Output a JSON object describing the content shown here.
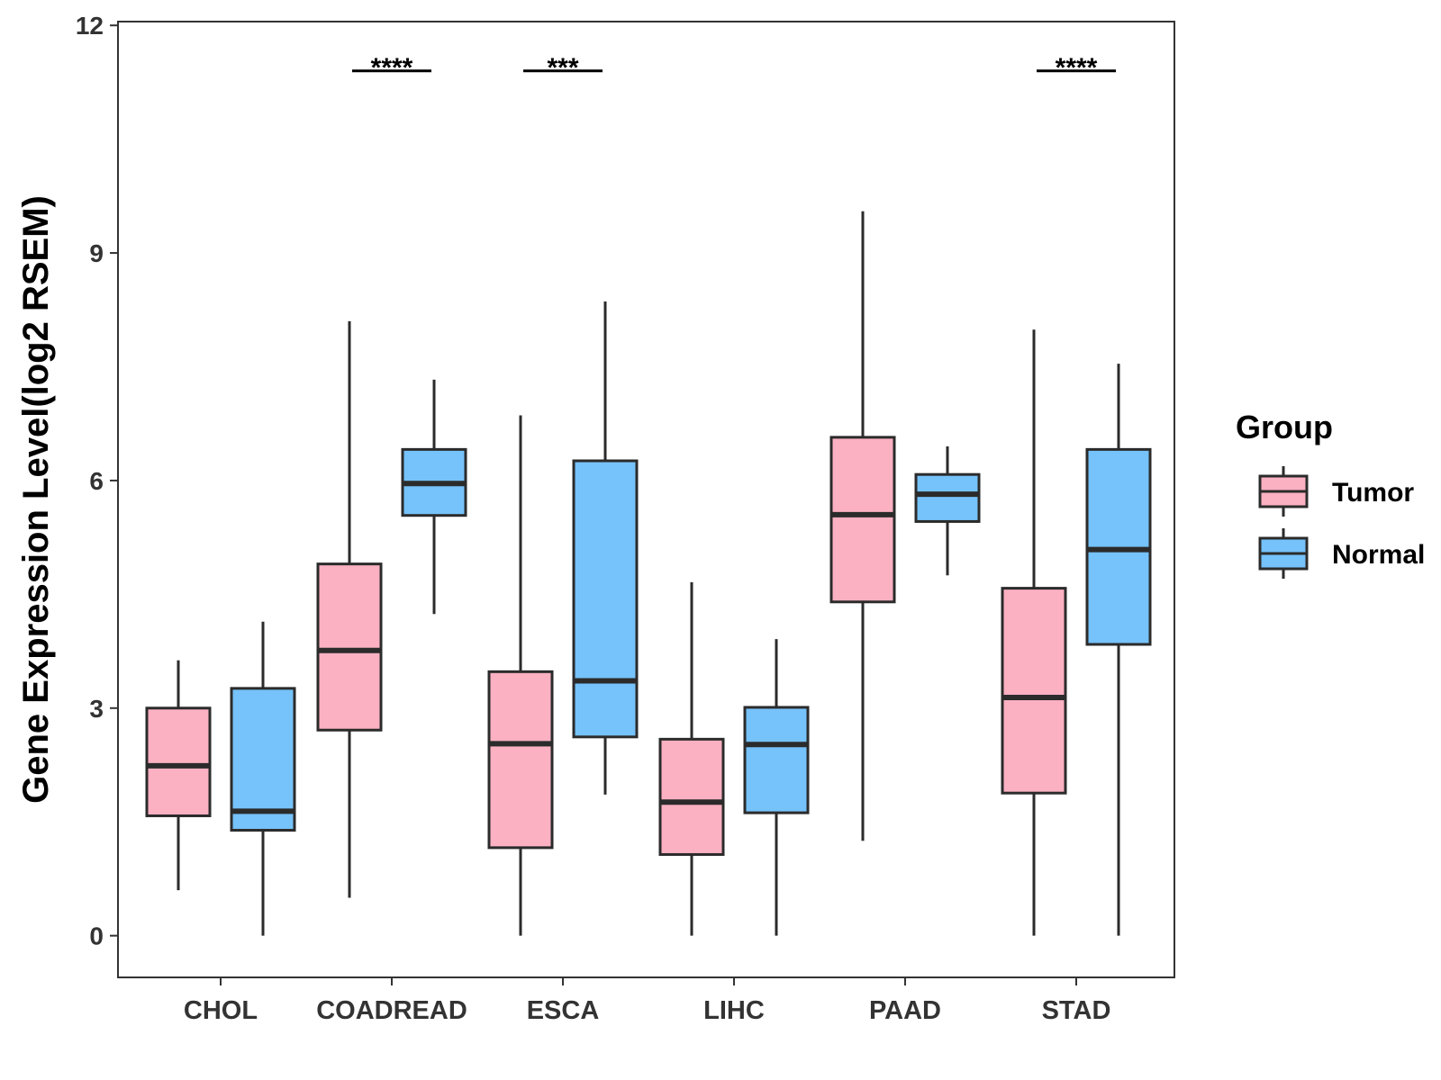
{
  "chart_data": {
    "type": "boxplot",
    "title": "",
    "xlabel": "",
    "ylabel": "Gene Expression Level(log2 RSEM)",
    "ylim": [
      -0.55,
      12.05
    ],
    "yticks": [
      0,
      3,
      6,
      9,
      12
    ],
    "ytick_labels": [
      "0",
      "3",
      "6",
      "9",
      "12"
    ],
    "categories": [
      "CHOL",
      "COADREAD",
      "ESCA",
      "LIHC",
      "PAAD",
      "STAD"
    ],
    "legend": {
      "title": "Group",
      "position": "right",
      "entries": [
        {
          "name": "Tumor",
          "color": "#FBB1C2"
        },
        {
          "name": "Normal",
          "color": "#76C2FA"
        }
      ]
    },
    "series": [
      {
        "name": "Tumor",
        "color": "#FBB1C2",
        "boxes": [
          {
            "category": "CHOL",
            "min": 0.6,
            "q1": 1.58,
            "median": 2.24,
            "q3": 3.0,
            "max": 3.63
          },
          {
            "category": "COADREAD",
            "min": 0.5,
            "q1": 2.71,
            "median": 3.76,
            "q3": 4.9,
            "max": 8.1
          },
          {
            "category": "ESCA",
            "min": 0.0,
            "q1": 1.16,
            "median": 2.53,
            "q3": 3.48,
            "max": 6.86
          },
          {
            "category": "LIHC",
            "min": 0.0,
            "q1": 1.07,
            "median": 1.76,
            "q3": 2.59,
            "max": 4.66
          },
          {
            "category": "PAAD",
            "min": 1.25,
            "q1": 4.4,
            "median": 5.55,
            "q3": 6.57,
            "max": 9.55
          },
          {
            "category": "STAD",
            "min": 0.0,
            "q1": 1.88,
            "median": 3.14,
            "q3": 4.58,
            "max": 7.99
          }
        ]
      },
      {
        "name": "Normal",
        "color": "#76C2FA",
        "boxes": [
          {
            "category": "CHOL",
            "min": 0.0,
            "q1": 1.39,
            "median": 1.64,
            "q3": 3.26,
            "max": 4.14
          },
          {
            "category": "COADREAD",
            "min": 4.24,
            "q1": 5.54,
            "median": 5.96,
            "q3": 6.41,
            "max": 7.33
          },
          {
            "category": "ESCA",
            "min": 1.86,
            "q1": 2.62,
            "median": 3.36,
            "q3": 6.26,
            "max": 8.36
          },
          {
            "category": "LIHC",
            "min": 0.0,
            "q1": 1.62,
            "median": 2.52,
            "q3": 3.01,
            "max": 3.91
          },
          {
            "category": "PAAD",
            "min": 4.75,
            "q1": 5.46,
            "median": 5.82,
            "q3": 6.08,
            "max": 6.45
          },
          {
            "category": "STAD",
            "min": 0.0,
            "q1": 3.84,
            "median": 5.09,
            "q3": 6.41,
            "max": 7.54
          }
        ]
      }
    ],
    "annotations": [
      {
        "category": "COADREAD",
        "label": "****",
        "y": 11.4
      },
      {
        "category": "ESCA",
        "label": "***",
        "y": 11.4
      },
      {
        "category": "STAD",
        "label": "****",
        "y": 11.4
      }
    ]
  }
}
